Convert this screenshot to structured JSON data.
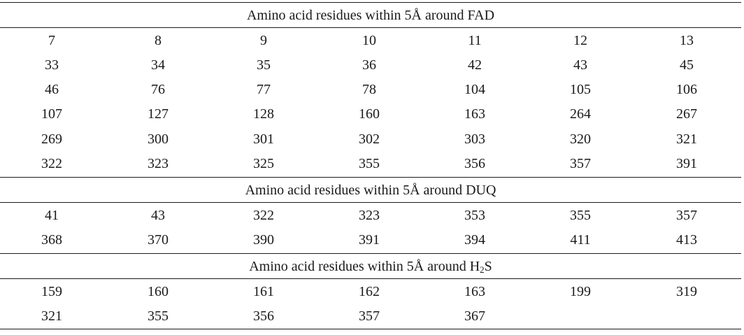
{
  "sections": [
    {
      "header_prefix": "Amino acid residues within 5Å around FAD",
      "header_sub": "",
      "header_suffix": "",
      "rows": [
        [
          "7",
          "8",
          "9",
          "10",
          "11",
          "12",
          "13"
        ],
        [
          "33",
          "34",
          "35",
          "36",
          "42",
          "43",
          "45"
        ],
        [
          "46",
          "76",
          "77",
          "78",
          "104",
          "105",
          "106"
        ],
        [
          "107",
          "127",
          "128",
          "160",
          "163",
          "264",
          "267"
        ],
        [
          "269",
          "300",
          "301",
          "302",
          "303",
          "320",
          "321"
        ],
        [
          "322",
          "323",
          "325",
          "355",
          "356",
          "357",
          "391"
        ]
      ]
    },
    {
      "header_prefix": "Amino acid residues within 5Å around DUQ",
      "header_sub": "",
      "header_suffix": "",
      "rows": [
        [
          "41",
          "43",
          "322",
          "323",
          "353",
          "355",
          "357"
        ],
        [
          "368",
          "370",
          "390",
          "391",
          "394",
          "411",
          "413"
        ]
      ]
    },
    {
      "header_prefix": "Amino acid residues within 5Å around H",
      "header_sub": "2",
      "header_suffix": "S",
      "rows": [
        [
          "159",
          "160",
          "161",
          "162",
          "163",
          "199",
          "319"
        ],
        [
          "321",
          "355",
          "356",
          "357",
          "367",
          "",
          ""
        ]
      ]
    }
  ]
}
